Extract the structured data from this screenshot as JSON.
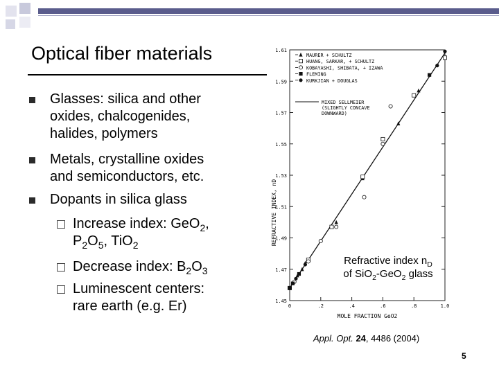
{
  "title": "Optical fiber materials",
  "bullets": [
    {
      "line1": "Glasses: silica and other",
      "line2": "oxides, chalcogenides,",
      "line3": "halides, polymers"
    },
    {
      "line1": "Metals, crystalline oxides",
      "line2": "and semiconductors, etc."
    },
    {
      "line1": "Dopants in silica glass"
    }
  ],
  "sub_bullets": [
    {
      "a": "Increase index: Ge",
      "b": "O",
      "c": "2",
      "d": ",",
      "e": "P",
      "f": "2",
      "g": "O",
      "h": "5",
      "i": ", Ti",
      "j": "O",
      "k": "2"
    },
    {
      "a": "Decrease index: B",
      "b": "2",
      "c": "O",
      "d": "3"
    },
    {
      "a": "Luminescent centers:",
      "b": "rare earth (e.g. Er)"
    }
  ],
  "caption": {
    "line1": "Refractive index n",
    "sub1": "D",
    "line2a": "of Si",
    "line2b": "O",
    "line2c": "2",
    "line2d": "-Ge",
    "line2e": "O",
    "line2f": "2",
    "line2g": " glass"
  },
  "citation": {
    "journal": "Appl. Opt.",
    "volume": "24",
    "rest": ", 4486 (2004)"
  },
  "slide_number": "5",
  "colors": {
    "accent": "#5a5c8c",
    "text": "#000000"
  },
  "chart_data": {
    "type": "scatter",
    "xlabel": "MOLE FRACTION GeO2",
    "ylabel": "REFRACTIVE INDEX, nD",
    "xlim": [
      0,
      1.0
    ],
    "ylim": [
      1.45,
      1.61
    ],
    "x_ticks": [
      "0",
      ".2",
      ".4",
      ".6",
      ".8",
      "1.0"
    ],
    "y_ticks": [
      "1.45",
      "1.47",
      "1.49",
      "1.51",
      "1.53",
      "1.55",
      "1.57",
      "1.59",
      "1.61"
    ],
    "legend": [
      {
        "marker": "▲",
        "name": "MAURER + SCHULTZ"
      },
      {
        "marker": "□",
        "name": "HUANG, SARKAR, + SCHULTZ"
      },
      {
        "marker": "○",
        "name": "KOBAYASHI, SHIBATA, + IZAWA"
      },
      {
        "marker": "■",
        "name": "FLEMING"
      },
      {
        "marker": "●",
        "name": "KURKJIAN + DOUGLAS"
      },
      {
        "marker": "—",
        "name": "MIXED SELLMEIER",
        "note1": "(SLIGHTLY CONCAVE",
        "note2": "DOWNWARD)"
      }
    ],
    "line": {
      "x": [
        0,
        1.0
      ],
      "y": [
        1.458,
        1.608
      ]
    },
    "series": [
      {
        "marker": "triangle",
        "x": [
          0.02,
          0.05,
          0.08,
          0.1,
          0.3,
          0.47,
          0.7,
          0.83
        ],
        "y": [
          1.461,
          1.466,
          1.47,
          1.474,
          1.5,
          1.528,
          1.563,
          1.584
        ]
      },
      {
        "marker": "square",
        "x": [
          0.0,
          0.12,
          0.27,
          0.47,
          0.6,
          0.8,
          1.0
        ],
        "y": [
          1.458,
          1.476,
          1.497,
          1.529,
          1.553,
          1.581,
          1.605
        ]
      },
      {
        "marker": "circle",
        "x": [
          0.0,
          0.03,
          0.12,
          0.2,
          0.3,
          0.48,
          0.6,
          0.65
        ],
        "y": [
          1.458,
          1.462,
          1.475,
          1.488,
          1.497,
          1.516,
          1.55,
          1.574
        ]
      },
      {
        "marker": "filled-square",
        "x": [
          0.02,
          0.06,
          0.9
        ],
        "y": [
          1.461,
          1.467,
          1.594
        ]
      },
      {
        "marker": "filled-circle",
        "x": [
          0.0,
          0.04,
          0.1,
          0.95,
          1.0
        ],
        "y": [
          1.458,
          1.464,
          1.473,
          1.6,
          1.609
        ]
      }
    ]
  }
}
